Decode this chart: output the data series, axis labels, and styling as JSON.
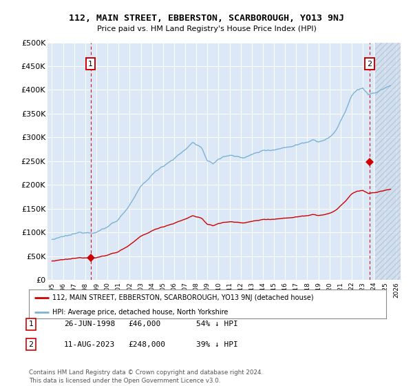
{
  "title": "112, MAIN STREET, EBBERSTON, SCARBOROUGH, YO13 9NJ",
  "subtitle": "Price paid vs. HM Land Registry's House Price Index (HPI)",
  "legend_line1": "112, MAIN STREET, EBBERSTON, SCARBOROUGH, YO13 9NJ (detached house)",
  "legend_line2": "HPI: Average price, detached house, North Yorkshire",
  "annotation1_date": "26-JUN-1998",
  "annotation1_price": 46000,
  "annotation1_hpi": "54% ↓ HPI",
  "annotation2_date": "11-AUG-2023",
  "annotation2_price": 248000,
  "annotation2_hpi": "39% ↓ HPI",
  "footer": "Contains HM Land Registry data © Crown copyright and database right 2024.\nThis data is licensed under the Open Government Licence v3.0.",
  "hpi_color": "#7ab3d4",
  "price_color": "#cc0000",
  "annotation_box_color": "#cc0000",
  "bg_color": "#dce8f5",
  "ylim_min": 0,
  "ylim_max": 500000,
  "yticks": [
    0,
    50000,
    100000,
    150000,
    200000,
    250000,
    300000,
    350000,
    400000,
    450000,
    500000
  ],
  "sale1_year": 1998.48,
  "sale2_year": 2023.61
}
